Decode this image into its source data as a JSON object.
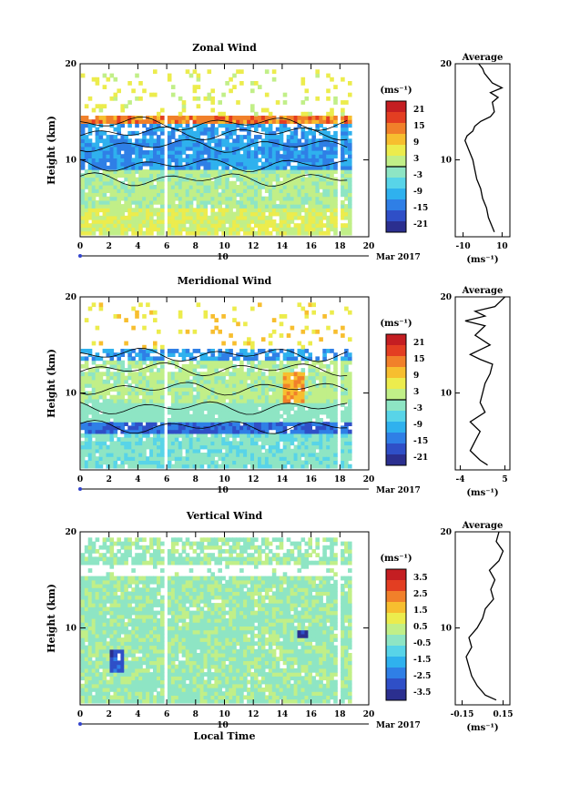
{
  "chart_data": [
    {
      "type": "heatmap",
      "title": "Zonal Wind",
      "ylabel": "Height (km)",
      "xlim": [
        0,
        20
      ],
      "ylim": [
        2,
        20
      ],
      "xticks": [
        "0",
        "2",
        "4",
        "6",
        "8",
        "10",
        "12",
        "14",
        "16",
        "18",
        "20"
      ],
      "yticks": [
        "10",
        "20"
      ],
      "date_day": "10",
      "date_month": "Mar 2017",
      "colorbar": {
        "unit": "(ms⁻¹)",
        "ticks": [
          "21",
          "15",
          "9",
          "3",
          "-3",
          "-9",
          "-15",
          "-21"
        ],
        "range": [
          -24,
          24
        ],
        "zero_line": true
      },
      "contours": [
        8,
        9.5,
        11.5,
        12.8,
        13.8
      ],
      "gaps": [
        [
          5.6,
          6.0
        ],
        [
          17.7,
          18.0
        ]
      ],
      "profile": {
        "title": "Average",
        "xlabel": "(ms⁻¹)",
        "xticks": [
          "-10",
          "10"
        ],
        "xlim": [
          -14,
          14
        ],
        "yticks": [
          "10",
          "20"
        ],
        "heights": [
          2.5,
          3,
          4,
          5,
          6,
          7,
          8,
          9,
          10,
          11,
          12,
          12.5,
          13,
          13.5,
          14,
          14.5,
          15,
          16,
          16.5,
          17,
          17.5,
          18,
          18.5,
          19,
          19.5,
          20
        ],
        "values": [
          6,
          5,
          3,
          2,
          0,
          -1,
          -3,
          -4,
          -5,
          -7,
          -9,
          -8,
          -5,
          -4,
          -1,
          4,
          6,
          5,
          8,
          4,
          10,
          5,
          3,
          1,
          0,
          -2
        ]
      }
    },
    {
      "type": "heatmap",
      "title": "Meridional Wind",
      "ylabel": "Height (km)",
      "xlim": [
        0,
        20
      ],
      "ylim": [
        2,
        20
      ],
      "xticks": [
        "0",
        "2",
        "4",
        "6",
        "8",
        "10",
        "12",
        "14",
        "16",
        "18",
        "20"
      ],
      "yticks": [
        "10",
        "20"
      ],
      "date_day": "10",
      "date_month": "Mar 2017",
      "colorbar": {
        "unit": "(ms⁻¹)",
        "ticks": [
          "21",
          "15",
          "9",
          "3",
          "-3",
          "-9",
          "-15",
          "-21"
        ],
        "range": [
          -24,
          24
        ],
        "zero_line": true
      },
      "contours": [
        6.5,
        8.5,
        10.5,
        12.5,
        14
      ],
      "gaps": [
        [
          5.6,
          6.0
        ],
        [
          17.7,
          18.0
        ]
      ],
      "profile": {
        "title": "Average",
        "xlabel": "(ms⁻¹)",
        "xticks": [
          "-4",
          "5"
        ],
        "xlim": [
          -5,
          6
        ],
        "yticks": [
          "10",
          "20"
        ],
        "heights": [
          2.5,
          3,
          4,
          5,
          6,
          7,
          8,
          9,
          10,
          11,
          12,
          13,
          13.5,
          14,
          14.5,
          15,
          16,
          17,
          17.5,
          18,
          18.5,
          19,
          19.5,
          20
        ],
        "values": [
          1.5,
          0,
          -2,
          -1,
          0,
          -2,
          1,
          0,
          0.5,
          1,
          2,
          2.5,
          0,
          -2,
          0,
          2,
          -1,
          1,
          -3,
          1,
          -1,
          3,
          4,
          5
        ]
      }
    },
    {
      "type": "heatmap",
      "title": "Vertical Wind",
      "ylabel": "Height (km)",
      "xlabel": "Local Time",
      "xlim": [
        0,
        20
      ],
      "ylim": [
        2,
        20
      ],
      "xticks": [
        "0",
        "2",
        "4",
        "6",
        "8",
        "10",
        "12",
        "14",
        "16",
        "18",
        "20"
      ],
      "yticks": [
        "10",
        "20"
      ],
      "date_day": "10",
      "date_month": "Mar 2017",
      "colorbar": {
        "unit": "(ms⁻¹)",
        "ticks": [
          "3.5",
          "2.5",
          "1.5",
          "0.5",
          "-0.5",
          "-1.5",
          "-2.5",
          "-3.5"
        ],
        "range": [
          -4,
          4
        ],
        "zero_line": false
      },
      "contours": [],
      "gaps": [
        [
          5.6,
          6.0
        ],
        [
          17.7,
          18.0
        ]
      ],
      "profile": {
        "title": "Average",
        "xlabel": "(ms⁻¹)",
        "xticks": [
          "-0.15",
          "0.15"
        ],
        "xlim": [
          -0.2,
          0.2
        ],
        "yticks": [
          "10",
          "20"
        ],
        "heights": [
          2.5,
          3,
          4,
          5,
          6,
          7,
          8,
          9,
          10,
          11,
          12,
          13,
          14,
          15,
          16,
          17,
          18,
          19,
          20
        ],
        "values": [
          0.1,
          0.02,
          -0.04,
          -0.08,
          -0.1,
          -0.12,
          -0.08,
          -0.1,
          -0.04,
          0.0,
          0.02,
          0.08,
          0.06,
          0.09,
          0.05,
          0.12,
          0.15,
          0.1,
          0.12
        ]
      }
    }
  ]
}
